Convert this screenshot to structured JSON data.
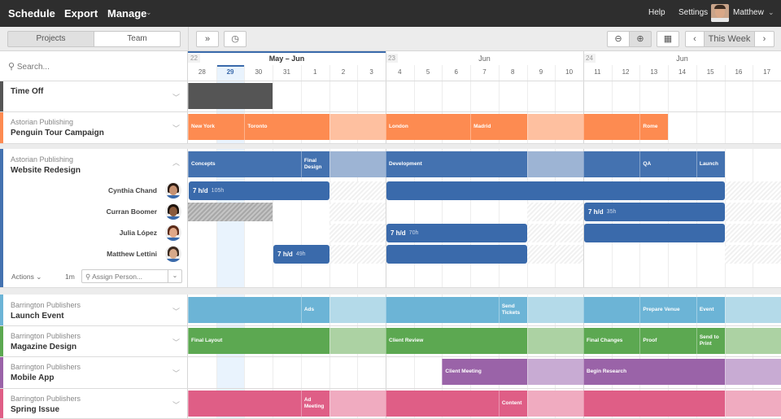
{
  "topbar": {
    "nav": [
      "Schedule",
      "Export",
      "Manage"
    ],
    "help": "Help",
    "settings": "Settings",
    "user": "Matthew"
  },
  "toolbar": {
    "tabs": [
      "Projects",
      "Team"
    ],
    "active_tab": "Projects",
    "this_week": "This Week",
    "prev": "‹",
    "next": "›"
  },
  "search": {
    "placeholder": "Search..."
  },
  "calendar": {
    "weeks": [
      {
        "num": "22",
        "month": "May – Jun"
      },
      {
        "num": "23",
        "month": "Jun"
      },
      {
        "num": "24",
        "month": "Jun"
      }
    ],
    "days": [
      "28",
      "29",
      "30",
      "31",
      "1",
      "2",
      "3",
      "4",
      "5",
      "6",
      "7",
      "8",
      "9",
      "10",
      "11",
      "12",
      "13",
      "14",
      "15",
      "16",
      "17"
    ],
    "day_months": [
      "May",
      "May",
      "May",
      "May",
      "Jun",
      "Jun",
      "Jun",
      "Jun",
      "Jun",
      "Jun",
      "Jun",
      "Jun",
      "Jun",
      "Jun",
      "Jun",
      "Jun",
      "Jun",
      "Jun",
      "Jun",
      "Jun",
      "Jun"
    ],
    "today": "May 29",
    "weekends": [
      "Jun 2",
      "Jun 3",
      "Jun 9",
      "Jun 10",
      "Jun 16",
      "Jun 17"
    ]
  },
  "projects": [
    {
      "client": "",
      "name": "Time Off",
      "color": "#555555",
      "light": "#555555",
      "segments": [
        {
          "label": "",
          "start": "May 28",
          "end": "May 30"
        }
      ]
    },
    {
      "client": "Astorian Publishing",
      "name": "Penguin Tour Campaign",
      "color": "#fd8b51",
      "light": "#fec0a0",
      "segments": [
        {
          "label": "New York",
          "start": "May 28",
          "end": "May 29"
        },
        {
          "label": "Toronto",
          "start": "May 30",
          "end": "Jun 1"
        },
        {
          "label": "",
          "start": "Jun 2",
          "end": "Jun 3",
          "faded": true
        },
        {
          "label": "London",
          "start": "Jun 4",
          "end": "Jun 6"
        },
        {
          "label": "Madrid",
          "start": "Jun 7",
          "end": "Jun 8"
        },
        {
          "label": "",
          "start": "Jun 9",
          "end": "Jun 10",
          "faded": true
        },
        {
          "label": "",
          "start": "Jun 11",
          "end": "Jun 12"
        },
        {
          "label": "Rome",
          "start": "Jun 13",
          "end": "Jun 13"
        }
      ]
    },
    {
      "client": "Astorian Publishing",
      "name": "Website Redesign",
      "color": "#4472b0",
      "light": "#9db4d4",
      "expanded": true,
      "segments": [
        {
          "label": "Concepts",
          "start": "May 28",
          "end": "May 31"
        },
        {
          "label": "Final Design",
          "start": "Jun 1",
          "end": "Jun 1"
        },
        {
          "label": "",
          "start": "Jun 2",
          "end": "Jun 3",
          "faded": true
        },
        {
          "label": "Development",
          "start": "Jun 4",
          "end": "Jun 8"
        },
        {
          "label": "",
          "start": "Jun 9",
          "end": "Jun 10",
          "faded": true
        },
        {
          "label": "",
          "start": "Jun 11",
          "end": "Jun 12"
        },
        {
          "label": "QA",
          "start": "Jun 13",
          "end": "Jun 14"
        },
        {
          "label": "Launch",
          "start": "Jun 15",
          "end": "Jun 15"
        }
      ],
      "people": [
        {
          "name": "Cynthia Chand",
          "skin": "#c79272",
          "hair": "#2a1a12",
          "assignments": [
            {
              "start": "May 28",
              "end": "Jun 1",
              "rate": "7 h/d",
              "hours": "105h"
            },
            {
              "start": "Jun 4",
              "end": "Jun 15"
            }
          ]
        },
        {
          "name": "Curran Boomer",
          "skin": "#8a5a3c",
          "hair": "#1d120c",
          "time_off": {
            "start": "May 28",
            "end": "May 30"
          },
          "assignments": [
            {
              "start": "Jun 11",
              "end": "Jun 15",
              "rate": "7 h/d",
              "hours": "35h"
            }
          ]
        },
        {
          "name": "Julia López",
          "skin": "#e0a888",
          "hair": "#5a2a18",
          "assignments": [
            {
              "start": "Jun 4",
              "end": "Jun 8",
              "rate": "7 h/d",
              "hours": "70h"
            },
            {
              "start": "Jun 11",
              "end": "Jun 15"
            }
          ]
        },
        {
          "name": "Matthew Lettini",
          "skin": "#d7a98a",
          "hair": "#3a2a20",
          "assignments": [
            {
              "start": "May 31",
              "end": "Jun 1",
              "rate": "7 h/d",
              "hours": "49h"
            },
            {
              "start": "Jun 4",
              "end": "Jun 8"
            }
          ]
        }
      ],
      "actions": "Actions",
      "duration": "1m",
      "assign_placeholder": "Assign Person..."
    },
    {
      "client": "Barrington Publishers",
      "name": "Launch Event",
      "color": "#6cb4d6",
      "light": "#b4dae9",
      "segments": [
        {
          "label": "",
          "start": "May 28",
          "end": "May 31"
        },
        {
          "label": "Ads",
          "start": "Jun 1",
          "end": "Jun 1"
        },
        {
          "label": "",
          "start": "Jun 2",
          "end": "Jun 3",
          "faded": true
        },
        {
          "label": "",
          "start": "Jun 4",
          "end": "Jun 7"
        },
        {
          "label": "Send Tickets",
          "start": "Jun 8",
          "end": "Jun 8"
        },
        {
          "label": "",
          "start": "Jun 9",
          "end": "Jun 10",
          "faded": true
        },
        {
          "label": "",
          "start": "Jun 11",
          "end": "Jun 12"
        },
        {
          "label": "Prepare Venue",
          "start": "Jun 13",
          "end": "Jun 14"
        },
        {
          "label": "Event",
          "start": "Jun 15",
          "end": "Jun 15"
        },
        {
          "label": "",
          "start": "Jun 16",
          "end": "Jun 17",
          "faded": true
        }
      ]
    },
    {
      "client": "Barrington Publishers",
      "name": "Magazine Design",
      "color": "#5ca851",
      "light": "#acd2a3",
      "segments": [
        {
          "label": "Final Layout",
          "start": "May 28",
          "end": "Jun 1"
        },
        {
          "label": "",
          "start": "Jun 2",
          "end": "Jun 3",
          "faded": true
        },
        {
          "label": "Client Review",
          "start": "Jun 4",
          "end": "Jun 8"
        },
        {
          "label": "",
          "start": "Jun 9",
          "end": "Jun 10",
          "faded": true
        },
        {
          "label": "Final Changes",
          "start": "Jun 11",
          "end": "Jun 12"
        },
        {
          "label": "Proof",
          "start": "Jun 13",
          "end": "Jun 14"
        },
        {
          "label": "Send to Print",
          "start": "Jun 15",
          "end": "Jun 15"
        },
        {
          "label": "",
          "start": "Jun 16",
          "end": "Jun 17",
          "faded": true
        }
      ]
    },
    {
      "client": "Barrington Publishers",
      "name": "Mobile App",
      "color": "#9a63a8",
      "light": "#c8abd3",
      "segments": [
        {
          "label": "Client Meeting",
          "start": "Jun 6",
          "end": "Jun 8"
        },
        {
          "label": "",
          "start": "Jun 9",
          "end": "Jun 10",
          "faded": true
        },
        {
          "label": "Begin Research",
          "start": "Jun 11",
          "end": "Jun 15"
        },
        {
          "label": "",
          "start": "Jun 16",
          "end": "Jun 17",
          "faded": true
        }
      ]
    },
    {
      "client": "Barrington Publishers",
      "name": "Spring Issue",
      "color": "#df5e86",
      "light": "#f0abc0",
      "segments": [
        {
          "label": "",
          "start": "May 28",
          "end": "May 31"
        },
        {
          "label": "Ad Meeting",
          "start": "Jun 1",
          "end": "Jun 1"
        },
        {
          "label": "",
          "start": "Jun 2",
          "end": "Jun 3",
          "faded": true
        },
        {
          "label": "",
          "start": "Jun 4",
          "end": "Jun 7"
        },
        {
          "label": "Content",
          "start": "Jun 8",
          "end": "Jun 8"
        },
        {
          "label": "",
          "start": "Jun 9",
          "end": "Jun 10",
          "faded": true
        },
        {
          "label": "",
          "start": "Jun 11",
          "end": "Jun 15"
        },
        {
          "label": "",
          "start": "Jun 16",
          "end": "Jun 17",
          "faded": true
        }
      ]
    }
  ]
}
